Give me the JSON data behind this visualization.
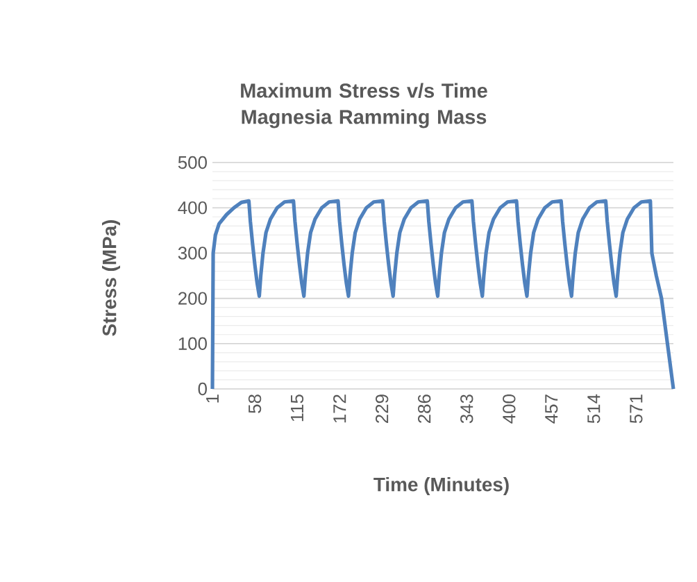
{
  "chart_data": {
    "type": "line",
    "title": "Maximum Stress v/s Time Magnesia Ramming Mass",
    "xlabel": "Time (Minutes)",
    "ylabel": "Stress (MPa)",
    "x": [
      1,
      2,
      5,
      10,
      20,
      30,
      40,
      50,
      52,
      55,
      58,
      61,
      64,
      66,
      69,
      73,
      79,
      88,
      98,
      110,
      112,
      115,
      118,
      121,
      124,
      126,
      129,
      133,
      139,
      148,
      158,
      170,
      172,
      175,
      178,
      181,
      184,
      186,
      189,
      193,
      199,
      208,
      218,
      230,
      232,
      235,
      238,
      241,
      244,
      246,
      249,
      253,
      259,
      268,
      278,
      290,
      292,
      295,
      298,
      301,
      304,
      306,
      309,
      313,
      319,
      328,
      338,
      350,
      352,
      355,
      358,
      361,
      364,
      366,
      369,
      373,
      379,
      388,
      398,
      410,
      412,
      415,
      418,
      421,
      424,
      426,
      429,
      433,
      439,
      448,
      458,
      470,
      472,
      475,
      478,
      481,
      484,
      486,
      489,
      493,
      499,
      508,
      518,
      530,
      532,
      535,
      538,
      541,
      544,
      546,
      549,
      553,
      559,
      568,
      578,
      590,
      592,
      598,
      605,
      613,
      621
    ],
    "series": [
      {
        "color": "#4f81bd",
        "values": [
          0,
          300,
          340,
          365,
          385,
          400,
          412,
          415,
          370,
          320,
          275,
          235,
          205,
          250,
          300,
          345,
          375,
          400,
          413,
          415,
          370,
          320,
          275,
          235,
          205,
          250,
          300,
          345,
          375,
          400,
          413,
          415,
          370,
          320,
          275,
          235,
          205,
          250,
          300,
          345,
          375,
          400,
          413,
          415,
          370,
          320,
          275,
          235,
          205,
          250,
          300,
          345,
          375,
          400,
          413,
          415,
          370,
          320,
          275,
          235,
          205,
          250,
          300,
          345,
          375,
          400,
          413,
          415,
          370,
          320,
          275,
          235,
          205,
          250,
          300,
          345,
          375,
          400,
          413,
          415,
          370,
          320,
          275,
          235,
          205,
          250,
          300,
          345,
          375,
          400,
          413,
          415,
          370,
          320,
          275,
          235,
          205,
          250,
          300,
          345,
          375,
          400,
          413,
          415,
          370,
          320,
          275,
          235,
          205,
          250,
          300,
          345,
          375,
          400,
          413,
          415,
          300,
          250,
          200,
          100,
          0
        ]
      }
    ],
    "xlim": [
      1,
      621
    ],
    "xticks": [
      1,
      58,
      115,
      172,
      229,
      286,
      343,
      400,
      457,
      514,
      571
    ],
    "ylim": [
      0,
      500
    ],
    "yticks": [
      0,
      100,
      200,
      300,
      400,
      500
    ],
    "grid": "y"
  }
}
